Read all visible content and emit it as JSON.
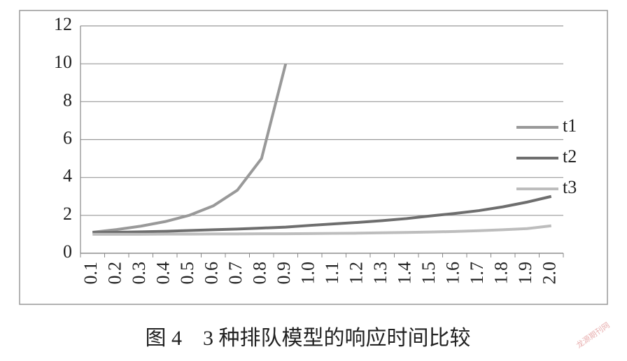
{
  "chart_data": {
    "type": "line",
    "caption": "图 4　3 种排队模型的响应时间比较",
    "watermark": "龙源期刊网",
    "categories": [
      "0.1",
      "0.2",
      "0.3",
      "0.4",
      "0.5",
      "0.6",
      "0.7",
      "0.8",
      "0.9",
      "1.0",
      "1.1",
      "1.2",
      "1.3",
      "1.4",
      "1.5",
      "1.6",
      "1.7",
      "1.8",
      "1.9",
      "2.0"
    ],
    "series": [
      {
        "name": "t1",
        "color": "#999999",
        "values": [
          1.11,
          1.25,
          1.43,
          1.67,
          2.0,
          2.5,
          3.33,
          5.0,
          10.0,
          null,
          null,
          null,
          null,
          null,
          null,
          null,
          null,
          null,
          null,
          null
        ]
      },
      {
        "name": "t2",
        "color": "#6e6e6e",
        "values": [
          1.1,
          1.11,
          1.13,
          1.16,
          1.2,
          1.24,
          1.28,
          1.33,
          1.38,
          1.47,
          1.55,
          1.63,
          1.72,
          1.83,
          1.97,
          2.1,
          2.25,
          2.45,
          2.7,
          3.0
        ]
      },
      {
        "name": "t3",
        "color": "#bdbdbd",
        "values": [
          1.0,
          1.0,
          1.0,
          1.01,
          1.01,
          1.02,
          1.02,
          1.03,
          1.03,
          1.04,
          1.05,
          1.06,
          1.08,
          1.1,
          1.12,
          1.15,
          1.19,
          1.24,
          1.3,
          1.45
        ]
      }
    ],
    "ylim": [
      0,
      12
    ],
    "yticks": [
      0,
      2,
      4,
      6,
      8,
      10,
      12
    ],
    "grid": true,
    "legend": "right"
  }
}
